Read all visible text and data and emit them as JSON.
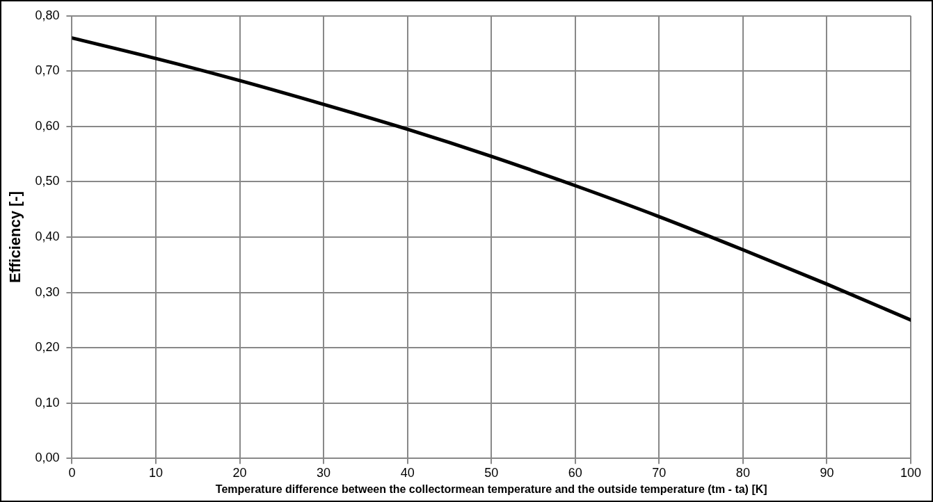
{
  "chart_data": {
    "type": "line",
    "xlabel": "Temperature difference between the collectormean temperature and the outside temperature (tm - ta) [K]",
    "ylabel": "Efficiency [-]",
    "x": [
      0,
      10,
      20,
      30,
      40,
      50,
      60,
      70,
      80,
      90,
      100
    ],
    "series": [
      {
        "color": "#000000",
        "values": [
          0.76,
          0.723,
          0.683,
          0.64,
          0.595,
          0.546,
          0.493,
          0.437,
          0.377,
          0.315,
          0.25
        ]
      }
    ],
    "xlim": [
      0,
      100
    ],
    "xticks": [
      0,
      10,
      20,
      30,
      40,
      50,
      60,
      70,
      80,
      90,
      100
    ],
    "ylim": [
      0,
      0.8
    ],
    "yticks": [
      {
        "value": 0,
        "label": "0,00"
      },
      {
        "value": 0.1,
        "label": "0,10"
      },
      {
        "value": 0.2,
        "label": "0,20"
      },
      {
        "value": 0.3,
        "label": "0,30"
      },
      {
        "value": 0.4,
        "label": "0,40"
      },
      {
        "value": 0.5,
        "label": "0,50"
      },
      {
        "value": 0.6,
        "label": "0,60"
      },
      {
        "value": 0.7,
        "label": "0,70"
      },
      {
        "value": 0.8,
        "label": "0,80"
      }
    ],
    "grid": true,
    "legend": false,
    "marker": "none",
    "line_style": "solid"
  }
}
